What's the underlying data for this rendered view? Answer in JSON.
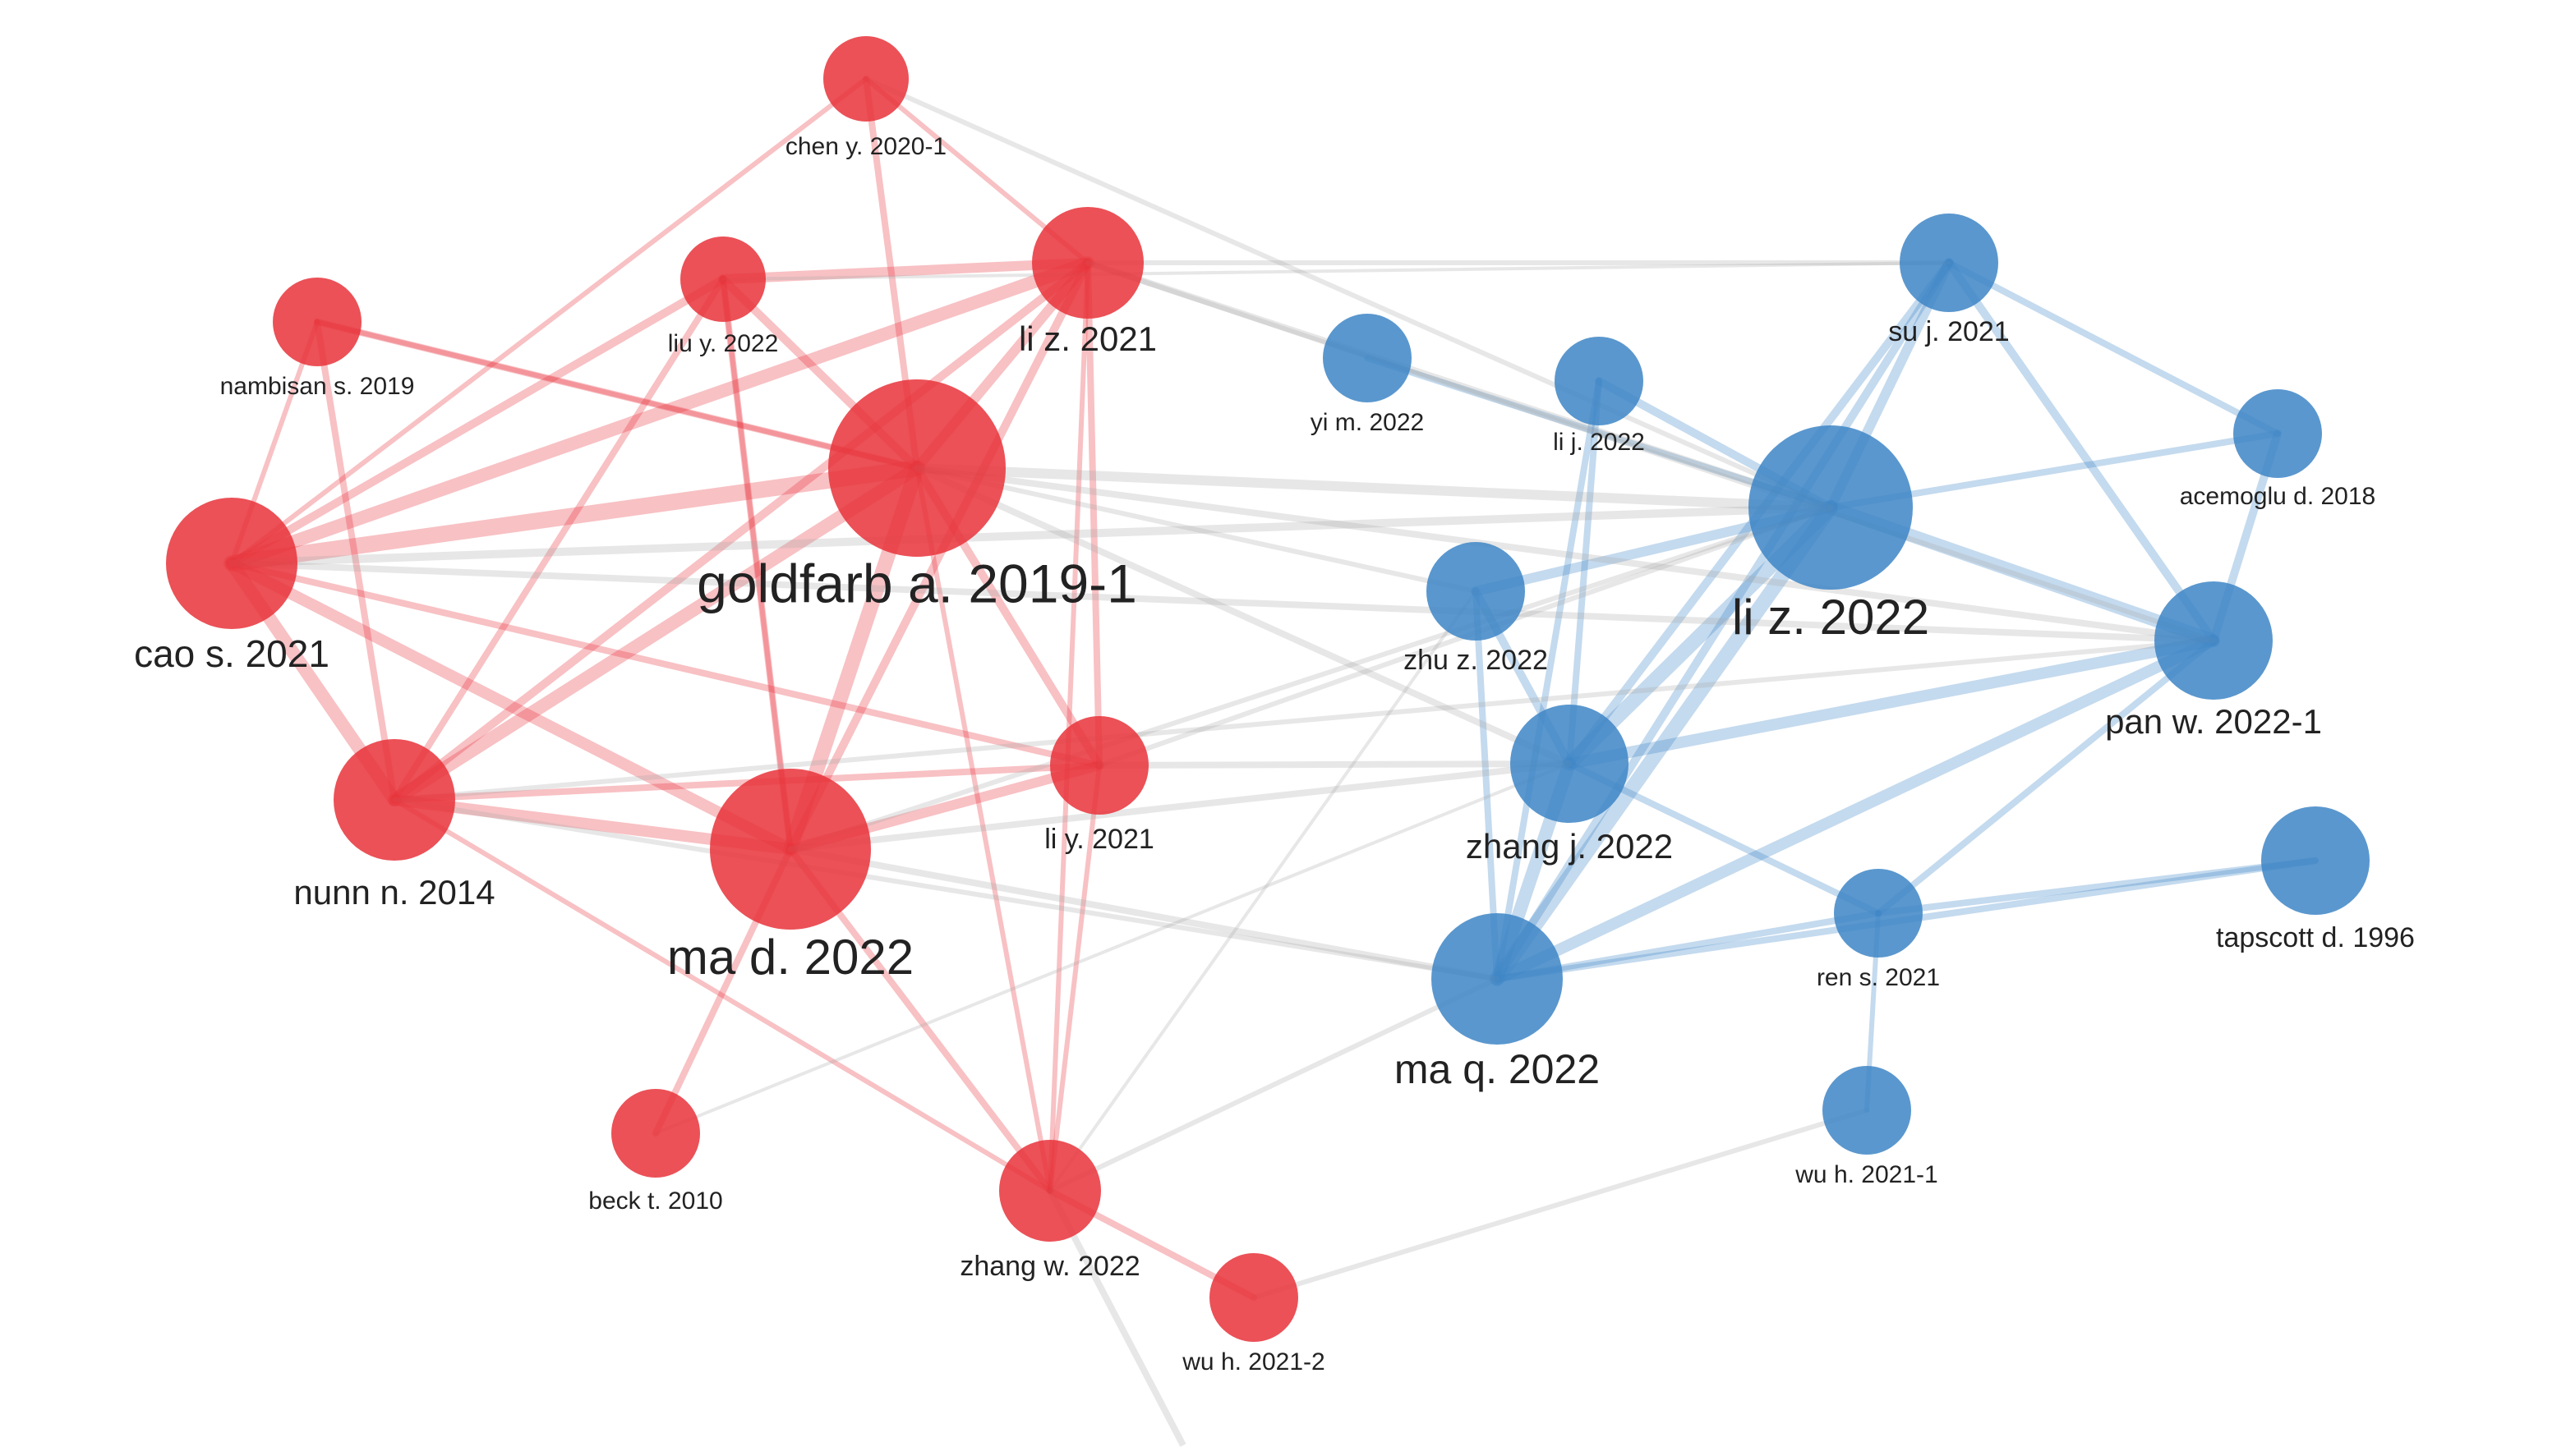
{
  "nodes": [
    {
      "label": "chen y. 2020-1"
    },
    {
      "label": "liu y. 2022"
    },
    {
      "label": "li z. 2021"
    },
    {
      "label": "nambisan s. 2019"
    },
    {
      "label": "goldfarb a. 2019-1"
    },
    {
      "label": "cao s. 2021"
    },
    {
      "label": "nunn n. 2014"
    },
    {
      "label": "ma d. 2022"
    },
    {
      "label": "li y. 2021"
    },
    {
      "label": "beck t. 2010"
    },
    {
      "label": "zhang w. 2022"
    },
    {
      "label": "wu h. 2021-2"
    },
    {
      "label": "su j. 2021"
    },
    {
      "label": "yi m. 2022"
    },
    {
      "label": "li j. 2022"
    },
    {
      "label": "acemoglu d. 2018"
    },
    {
      "label": "li z. 2022"
    },
    {
      "label": "zhu z. 2022"
    },
    {
      "label": "pan w. 2022-1"
    },
    {
      "label": "zhang j. 2022"
    },
    {
      "label": "tapscott d. 1996"
    },
    {
      "label": "ren s. 2021"
    },
    {
      "label": "ma q. 2022"
    },
    {
      "label": "wu h. 2021-1"
    }
  ]
}
